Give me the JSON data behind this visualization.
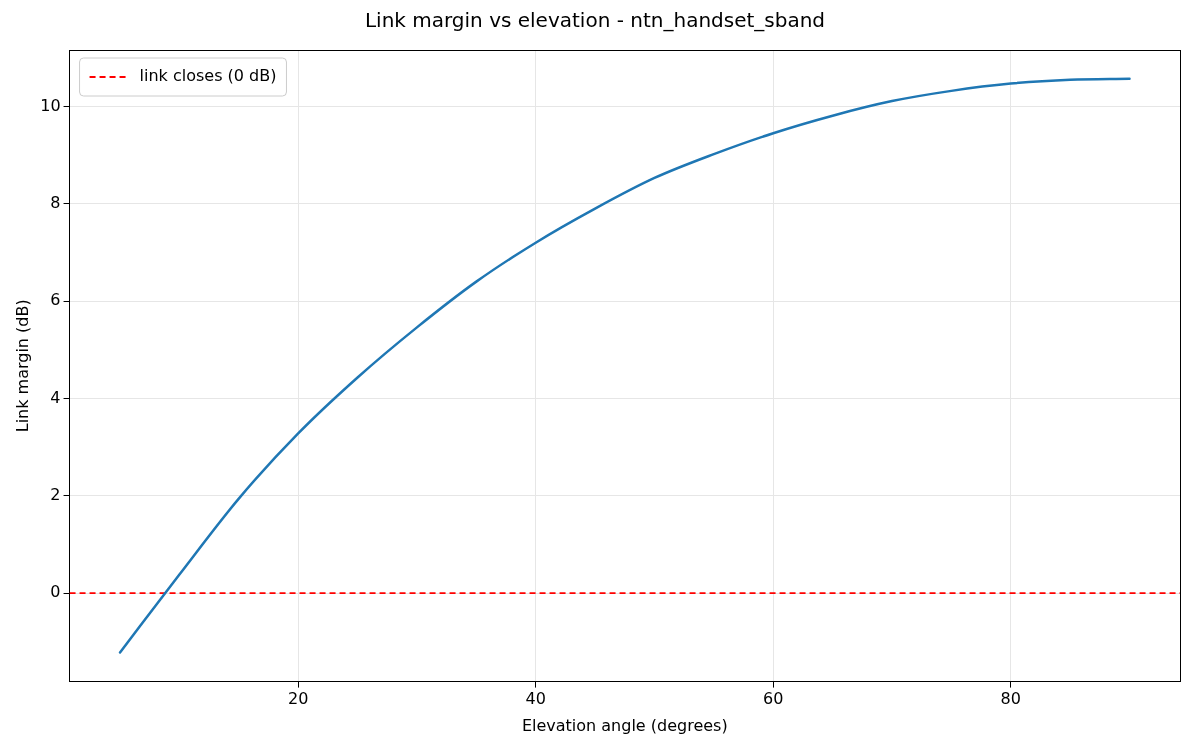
{
  "chart_data": {
    "type": "line",
    "title": "Link margin vs elevation - ntn_handset_sband",
    "xlabel": "Elevation angle (degrees)",
    "ylabel": "Link margin (dB)",
    "x": [
      5,
      10,
      15,
      20,
      25,
      30,
      35,
      40,
      45,
      50,
      55,
      60,
      65,
      70,
      75,
      80,
      85,
      90
    ],
    "series": [
      {
        "color": "#1f77b4",
        "values": [
          -1.22,
          0.38,
          1.94,
          3.28,
          4.43,
          5.46,
          6.4,
          7.2,
          7.9,
          8.53,
          9.02,
          9.45,
          9.81,
          10.11,
          10.32,
          10.47,
          10.55,
          10.57
        ]
      }
    ],
    "ref_lines": [
      {
        "axis": "y",
        "value": 0,
        "label": "link closes (0 dB)",
        "color": "#ff0000",
        "line_style": "dashed"
      }
    ],
    "xlim": [
      0.75,
      94.25
    ],
    "ylim": [
      -1.82,
      11.16
    ],
    "xticks": [
      20,
      40,
      60,
      80
    ],
    "yticks": [
      0,
      2,
      4,
      6,
      8,
      10
    ],
    "grid": true,
    "legend": "top left",
    "marker": "none",
    "line_style": "solid"
  }
}
